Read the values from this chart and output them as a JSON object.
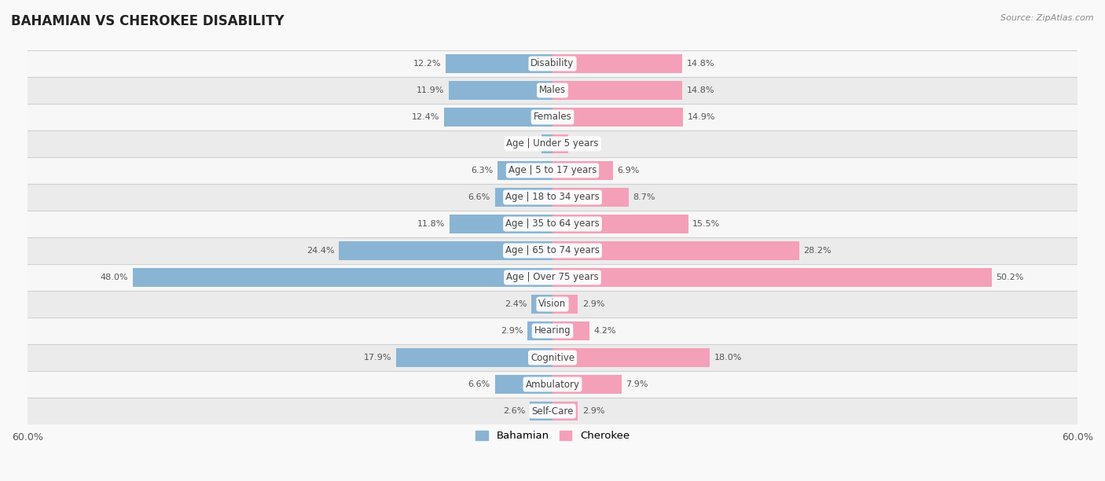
{
  "title": "BAHAMIAN VS CHEROKEE DISABILITY",
  "source": "Source: ZipAtlas.com",
  "categories": [
    "Disability",
    "Males",
    "Females",
    "Age | Under 5 years",
    "Age | 5 to 17 years",
    "Age | 18 to 34 years",
    "Age | 35 to 64 years",
    "Age | 65 to 74 years",
    "Age | Over 75 years",
    "Vision",
    "Hearing",
    "Cognitive",
    "Ambulatory",
    "Self-Care"
  ],
  "bahamian": [
    12.2,
    11.9,
    12.4,
    1.3,
    6.3,
    6.6,
    11.8,
    24.4,
    48.0,
    2.4,
    2.9,
    17.9,
    6.6,
    2.6
  ],
  "cherokee": [
    14.8,
    14.8,
    14.9,
    1.8,
    6.9,
    8.7,
    15.5,
    28.2,
    50.2,
    2.9,
    4.2,
    18.0,
    7.9,
    2.9
  ],
  "bahamian_color": "#8ab4d4",
  "cherokee_color": "#f4a0b8",
  "bahamian_color_dark": "#5a8fbf",
  "cherokee_color_dark": "#e8608a",
  "xlim": 60.0,
  "bar_height": 0.72,
  "row_bg_light": "#f7f7f7",
  "row_bg_dark": "#ebebeb",
  "separator_color": "#d0d0d0",
  "label_bg": "#ffffff",
  "label_color": "#444444",
  "value_color": "#555555",
  "title_color": "#222222",
  "source_color": "#888888",
  "fig_bg": "#f9f9f9"
}
